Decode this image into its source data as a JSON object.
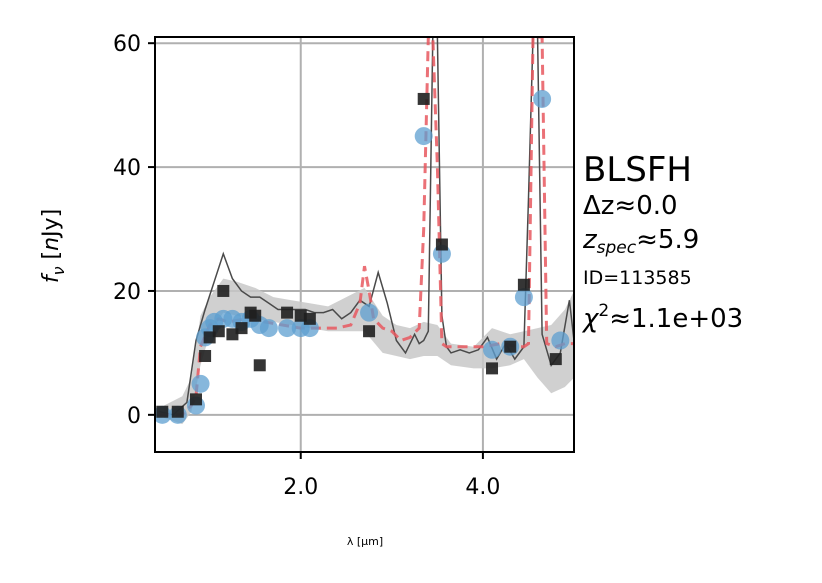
{
  "chart_data": {
    "type": "scatter",
    "title": "",
    "xlabel": "λ [μm]",
    "ylabel": "f_ν [nJy]",
    "xlim": [
      0.4,
      5.0
    ],
    "ylim": [
      -6,
      61
    ],
    "grid": true,
    "xticks": [
      2.0,
      4.0
    ],
    "xtick_labels": [
      "2.0",
      "4.0"
    ],
    "yticks": [
      0,
      20,
      40,
      60
    ],
    "ytick_labels": [
      "0",
      "20",
      "40",
      "60"
    ],
    "annotations": {
      "name": "BLSFH",
      "dz_label": "Δz≈0.0",
      "zspec_label": "z",
      "zspec_sub": "spec",
      "zspec_value": "≈5.9",
      "id_label": "ID=113585",
      "chi2_label": "χ",
      "chi2_sup": "2",
      "chi2_value": "≈1.1e+03"
    },
    "series": [
      {
        "kind": "model-spectrum-band",
        "color": "#c8c8c8",
        "x": [
          0.5,
          0.7,
          0.8,
          0.9,
          1.0,
          1.15,
          1.3,
          1.5,
          1.7,
          1.9,
          2.1,
          2.3,
          2.5,
          2.7,
          2.9,
          3.05,
          3.2,
          3.35,
          3.5,
          3.65,
          3.9,
          4.1,
          4.3,
          4.45,
          4.6,
          4.75,
          4.9,
          5.0
        ],
        "upper": [
          1.5,
          3.0,
          6.0,
          16.0,
          19.0,
          22.0,
          21.5,
          20.5,
          19.0,
          18.5,
          18.0,
          17.5,
          19.0,
          20.5,
          16.0,
          14.5,
          14.0,
          15.0,
          14.5,
          11.5,
          11.0,
          14.0,
          13.0,
          13.5,
          14.0,
          14.5,
          17.0,
          20.0
        ],
        "lower": [
          -0.5,
          -1.5,
          0.5,
          8.0,
          13.0,
          16.5,
          16.0,
          15.5,
          15.0,
          14.5,
          14.0,
          13.5,
          13.5,
          13.5,
          10.0,
          9.5,
          9.0,
          9.5,
          9.5,
          8.0,
          7.5,
          7.5,
          8.0,
          9.0,
          6.0,
          3.5,
          4.5,
          6.0
        ]
      },
      {
        "kind": "model-spectrum",
        "color": "#4a4a4a",
        "x": [
          0.45,
          0.6,
          0.75,
          0.85,
          0.95,
          1.05,
          1.15,
          1.25,
          1.35,
          1.45,
          1.55,
          1.65,
          1.75,
          1.85,
          1.95,
          2.05,
          2.15,
          2.25,
          2.35,
          2.45,
          2.55,
          2.65,
          2.75,
          2.85,
          2.95,
          3.05,
          3.15,
          3.25,
          3.3,
          3.35,
          3.4,
          3.45,
          3.5,
          3.55,
          3.6,
          3.65,
          3.75,
          3.85,
          3.95,
          4.05,
          4.15,
          4.25,
          4.35,
          4.45,
          4.5,
          4.55,
          4.6,
          4.65,
          4.75,
          4.85,
          4.95,
          5.0
        ],
        "y": [
          0.5,
          0.0,
          2.0,
          12.0,
          17.0,
          21.5,
          26.0,
          22.0,
          20.0,
          19.0,
          19.0,
          18.0,
          17.0,
          17.0,
          17.0,
          17.0,
          16.5,
          16.5,
          17.0,
          15.5,
          16.5,
          18.5,
          17.5,
          23.0,
          18.0,
          12.0,
          10.0,
          13.0,
          11.5,
          12.0,
          13.5,
          61.0,
          61.0,
          16.0,
          11.0,
          10.0,
          10.5,
          10.0,
          10.5,
          12.5,
          9.0,
          11.5,
          9.0,
          11.0,
          35.0,
          61.0,
          61.0,
          13.0,
          8.0,
          10.0,
          18.5,
          12.0
        ]
      },
      {
        "kind": "best-fit",
        "color": "#e8585f",
        "x": [
          0.45,
          0.7,
          0.8,
          0.85,
          0.9,
          1.0,
          1.1,
          1.2,
          1.4,
          1.6,
          1.8,
          2.0,
          2.2,
          2.4,
          2.55,
          2.65,
          2.7,
          2.75,
          2.8,
          2.9,
          3.0,
          3.1,
          3.2,
          3.3,
          3.35,
          3.4,
          3.45,
          3.5,
          3.55,
          3.6,
          3.7,
          3.8,
          4.0,
          4.2,
          4.4,
          4.45,
          4.5,
          4.55,
          4.6,
          4.65,
          4.7,
          4.8,
          4.9,
          5.0
        ],
        "y": [
          0.0,
          0.0,
          1.5,
          3.0,
          11.0,
          14.5,
          15.5,
          15.0,
          15.5,
          15.0,
          14.5,
          14.0,
          14.0,
          14.0,
          14.5,
          18.0,
          24.0,
          20.0,
          15.5,
          14.0,
          13.5,
          12.0,
          12.5,
          14.0,
          30.0,
          61.0,
          61.0,
          40.0,
          11.5,
          11.0,
          11.0,
          11.0,
          11.0,
          11.5,
          11.0,
          11.0,
          11.5,
          61.0,
          61.0,
          61.0,
          11.5,
          11.0,
          11.5,
          11.5
        ]
      },
      {
        "kind": "observed-photometry",
        "color": "#5e9fd0",
        "x": [
          0.48,
          0.65,
          0.85,
          0.9,
          0.95,
          1.0,
          1.05,
          1.15,
          1.25,
          1.35,
          1.45,
          1.55,
          1.65,
          1.85,
          2.0,
          2.1,
          2.75,
          3.35,
          3.55,
          4.1,
          4.3,
          4.45,
          4.65,
          4.85
        ],
        "y": [
          0.0,
          0.0,
          1.5,
          5.0,
          12.5,
          14.0,
          15.0,
          15.5,
          15.5,
          15.0,
          15.5,
          14.5,
          14.0,
          14.0,
          14.0,
          14.0,
          16.5,
          45.0,
          26.0,
          10.5,
          11.0,
          19.0,
          51.0,
          12.0
        ]
      },
      {
        "kind": "model-photometry",
        "color": "#1f1f1f",
        "x": [
          0.48,
          0.65,
          0.85,
          0.95,
          1.0,
          1.1,
          1.15,
          1.25,
          1.35,
          1.45,
          1.5,
          1.55,
          1.85,
          2.0,
          2.1,
          2.75,
          3.35,
          3.55,
          4.1,
          4.3,
          4.45,
          4.8
        ],
        "y": [
          0.5,
          0.5,
          2.5,
          9.5,
          12.5,
          13.5,
          20.0,
          13.0,
          14.0,
          16.5,
          16.0,
          8.0,
          16.5,
          16.0,
          15.5,
          13.5,
          51.0,
          27.5,
          7.5,
          11.0,
          21.0,
          9.0
        ]
      }
    ]
  }
}
